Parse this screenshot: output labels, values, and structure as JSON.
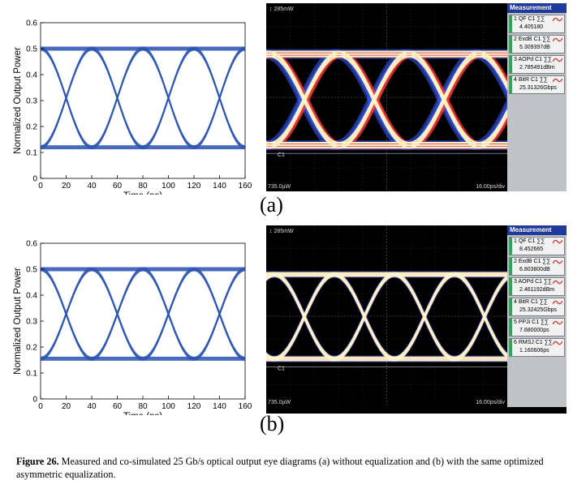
{
  "panels": [
    {
      "label": "(a)",
      "sim_plot": {
        "type": "eye",
        "xlabel": "Time (ps)",
        "ylabel": "Normalized Output Power",
        "xlim": [
          0,
          160
        ],
        "ylim": [
          0,
          0.6
        ],
        "xticks": [
          "0",
          "20",
          "40",
          "60",
          "80",
          "100",
          "120",
          "140",
          "160"
        ],
        "yticks": [
          "0",
          "0.1",
          "0.2",
          "0.3",
          "0.4",
          "0.5",
          "0.6"
        ],
        "high_level": 0.5,
        "low_level": 0.12,
        "crossing_level": 0.31,
        "crossings": [
          0,
          40,
          80,
          120,
          160
        ],
        "color": "#2b55b0"
      },
      "scope": {
        "top_scale": "285mW",
        "channel": "C1",
        "bottom_left": "735.0µW",
        "bottom_right": "16.00ps/div",
        "meas_title": "Measurement",
        "measurements": [
          {
            "name": "QF",
            "ch": "C1",
            "value": "4.405180"
          },
          {
            "name": "ExdB",
            "ch": "C1",
            "value": "5.309397dB"
          },
          {
            "name": "AOPd",
            "ch": "C1",
            "value": "2.785491dBm"
          },
          {
            "name": "BitR",
            "ch": "C1",
            "value": "25.31326Gbps"
          }
        ]
      }
    },
    {
      "label": "(b)",
      "sim_plot": {
        "type": "eye",
        "xlabel": "Time (ps)",
        "ylabel": "Normalized Output Power",
        "xlim": [
          0,
          160
        ],
        "ylim": [
          0,
          0.6
        ],
        "xticks": [
          "0",
          "20",
          "40",
          "60",
          "80",
          "100",
          "120",
          "140",
          "160"
        ],
        "yticks": [
          "0",
          "0.1",
          "0.2",
          "0.3",
          "0.4",
          "0.5",
          "0.6"
        ],
        "high_level": 0.5,
        "low_level": 0.155,
        "crossing_level": 0.33,
        "crossings": [
          0,
          40,
          80,
          120,
          160
        ],
        "color": "#2b55b0"
      },
      "scope": {
        "top_scale": "285mW",
        "channel": "C1",
        "bottom_left": "735.0µW",
        "bottom_right": "16.00ps/div",
        "meas_title": "Measurement",
        "measurements": [
          {
            "name": "QF",
            "ch": "C1",
            "value": "8.452665"
          },
          {
            "name": "ExdB",
            "ch": "C1",
            "value": "6.803800dB"
          },
          {
            "name": "AOPd",
            "ch": "C1",
            "value": "2.461192dBm"
          },
          {
            "name": "BitR",
            "ch": "C1",
            "value": "25.32425Gbps"
          },
          {
            "name": "PPJi",
            "ch": "C1",
            "value": "7.680000ps"
          },
          {
            "name": "RMSJ",
            "ch": "C1",
            "value": "1.160606ps"
          }
        ]
      }
    }
  ],
  "caption": {
    "label": "Figure 26.",
    "text": "Measured and co-simulated 25 Gb/s optical output eye diagrams (a) without equalization and (b) with the same optimized asymmetric equalization."
  },
  "colors": {
    "sim_trace": "#2b55b0",
    "scope_bg": "#000000",
    "scope_hot": "#fff6c8",
    "scope_mid": "#ff3a3a",
    "scope_cool": "#3a5cff",
    "meas_header": "#1f3a9a"
  }
}
